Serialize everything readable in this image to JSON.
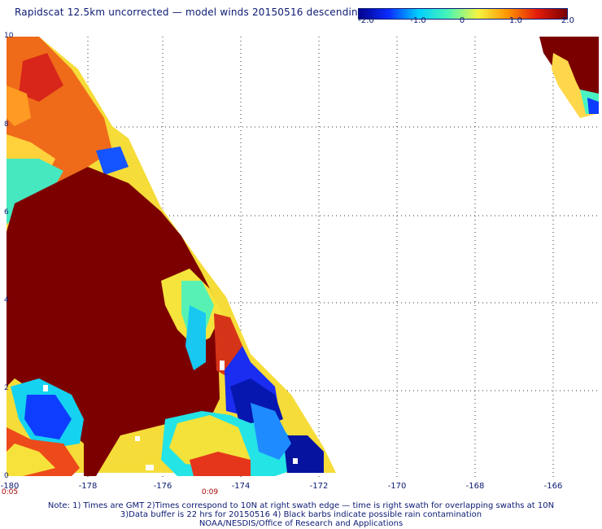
{
  "title": "Rapidscat 12.5km uncorrected — model winds 20150516 descending",
  "colorbar": {
    "ticks": [
      "-2.0",
      "-1.0",
      "0",
      "1.0",
      "2.0"
    ],
    "range": [
      -2.0,
      2.0
    ],
    "colors": [
      "#02028e",
      "#0b2cff",
      "#00cfff",
      "#47f5b5",
      "#f4f542",
      "#ff9500",
      "#e31b0c",
      "#7a0000"
    ]
  },
  "axes": {
    "x_ticks": [
      "-180",
      "-178",
      "-176",
      "-174",
      "-172",
      "-170",
      "-168",
      "-166"
    ],
    "y_ticks": [
      "0",
      "2",
      "4",
      "6",
      "8",
      "10"
    ],
    "grid": "dotted"
  },
  "time_labels": [
    "0:05",
    "0:09"
  ],
  "notes": [
    "Note: 1) Times are GMT 2)Times correspond to 10N at right swath edge — time is right swath for overlapping swaths at 10N",
    "3)Data buffer is 22 hrs for 20150516 4) Black barbs indicate possible rain contamination",
    "NOAA/NESDIS/Office of Research and Applications"
  ]
}
